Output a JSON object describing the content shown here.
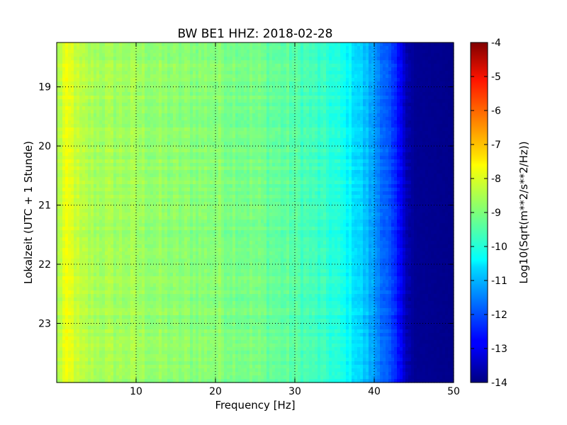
{
  "chart_data": {
    "type": "heatmap",
    "title": "BW BE1 HHZ: 2018-02-28",
    "xlabel": "Frequency [Hz]",
    "ylabel": "Lokalzeit (UTC + 1 Stunde)",
    "xlim": [
      0,
      50
    ],
    "ylim": [
      18.25,
      24.0
    ],
    "y_inverted": true,
    "x_ticks": [
      "10",
      "20",
      "30",
      "40",
      "50"
    ],
    "y_ticks": [
      "19",
      "20",
      "21",
      "22",
      "23"
    ],
    "grid": true,
    "colormap": "jet",
    "colorbar": {
      "label": "Log10(Sqrt(m**2/s**2/Hz))",
      "range": [
        -14,
        -4
      ],
      "ticks": [
        "-4",
        "-5",
        "-6",
        "-7",
        "-8",
        "-9",
        "-10",
        "-11",
        "-12",
        "-13",
        "-14"
      ]
    },
    "frequency_profile": {
      "frequency_hz": [
        0,
        1,
        2,
        3,
        5,
        10,
        15,
        20,
        25,
        30,
        33,
        35,
        37,
        39,
        41,
        42,
        43,
        44,
        45,
        50
      ],
      "log10_amplitude": [
        -8.7,
        -8.0,
        -8.1,
        -8.5,
        -8.6,
        -8.7,
        -8.9,
        -8.9,
        -9.1,
        -9.4,
        -9.7,
        -9.9,
        -10.3,
        -10.9,
        -11.6,
        -12.1,
        -12.7,
        -13.3,
        -13.8,
        -13.9
      ]
    }
  }
}
